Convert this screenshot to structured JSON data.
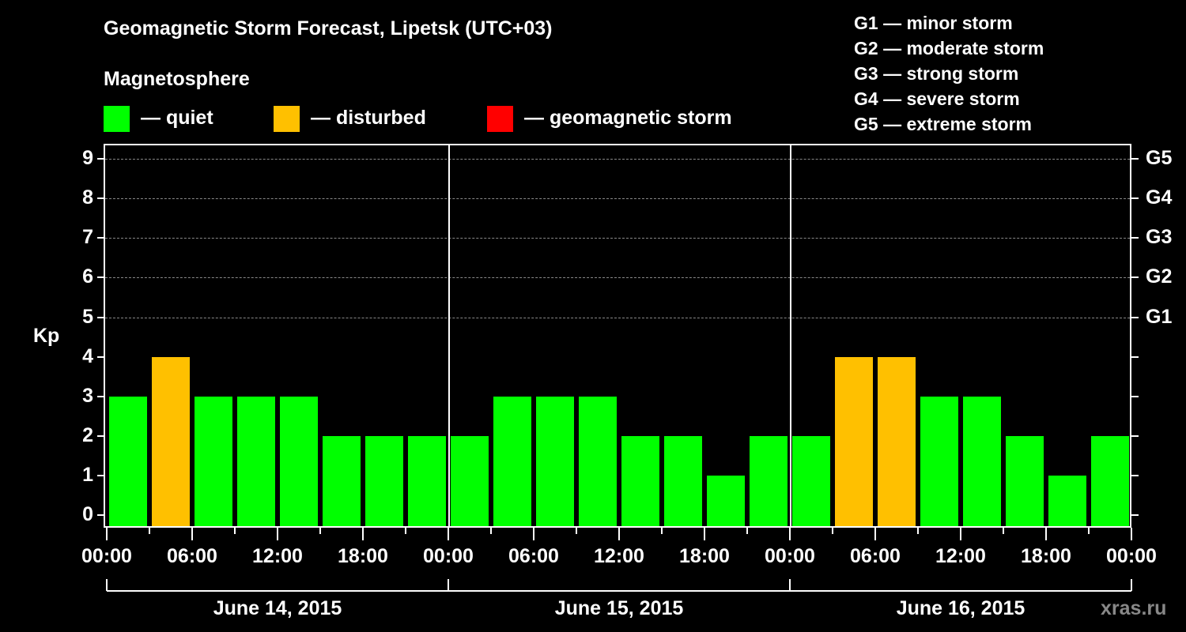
{
  "header": {
    "title": "Geomagnetic Storm Forecast, Lipetsk (UTC+03)",
    "subtitle": "Magnetosphere"
  },
  "legend": {
    "items": [
      {
        "label": "— quiet",
        "color": "#00ff00"
      },
      {
        "label": "— disturbed",
        "color": "#ffc000"
      },
      {
        "label": "— geomagnetic storm",
        "color": "#ff0000"
      }
    ]
  },
  "g_scale_legend": [
    "G1 — minor storm",
    "G2 — moderate storm",
    "G3 — strong storm",
    "G4 — severe storm",
    "G5 — extreme storm"
  ],
  "axes": {
    "y_label": "Kp",
    "y_ticks": [
      "0",
      "1",
      "2",
      "3",
      "4",
      "5",
      "6",
      "7",
      "8",
      "9"
    ],
    "right_ticks": [
      "G1",
      "G2",
      "G3",
      "G4",
      "G5"
    ],
    "x_ticks": [
      "00:00",
      "06:00",
      "12:00",
      "18:00",
      "00:00",
      "06:00",
      "12:00",
      "18:00",
      "00:00",
      "06:00",
      "12:00",
      "18:00",
      "00:00"
    ],
    "days": [
      "June 14, 2015",
      "June 15, 2015",
      "June 16, 2015"
    ]
  },
  "watermark": "xras.ru",
  "chart_data": {
    "type": "bar",
    "title": "Geomagnetic Storm Forecast, Lipetsk (UTC+03)",
    "subtitle": "Magnetosphere",
    "xlabel": "",
    "ylabel": "Kp",
    "ylim": [
      0,
      9
    ],
    "right_axis": {
      "5": "G1",
      "6": "G2",
      "7": "G3",
      "8": "G4",
      "9": "G5"
    },
    "grid": "dashed horizontal lines at Kp 5-9",
    "legend": [
      {
        "label": "quiet",
        "color": "#00ff00"
      },
      {
        "label": "disturbed",
        "color": "#ffc000"
      },
      {
        "label": "geomagnetic storm",
        "color": "#ff0000"
      }
    ],
    "categories": [
      "Jun14 00-03",
      "Jun14 03-06",
      "Jun14 06-09",
      "Jun14 09-12",
      "Jun14 12-15",
      "Jun14 15-18",
      "Jun14 18-21",
      "Jun14 21-24",
      "Jun15 00-03",
      "Jun15 03-06",
      "Jun15 06-09",
      "Jun15 09-12",
      "Jun15 12-15",
      "Jun15 15-18",
      "Jun15 18-21",
      "Jun15 21-24",
      "Jun16 00-03",
      "Jun16 03-06",
      "Jun16 06-09",
      "Jun16 09-12",
      "Jun16 12-15",
      "Jun16 15-18",
      "Jun16 18-21",
      "Jun16 21-24"
    ],
    "values": [
      3,
      4,
      3,
      3,
      3,
      2,
      2,
      2,
      2,
      3,
      3,
      3,
      2,
      2,
      1,
      2,
      2,
      4,
      4,
      3,
      3,
      2,
      1,
      2
    ],
    "status": [
      "quiet",
      "disturbed",
      "quiet",
      "quiet",
      "quiet",
      "quiet",
      "quiet",
      "quiet",
      "quiet",
      "quiet",
      "quiet",
      "quiet",
      "quiet",
      "quiet",
      "quiet",
      "quiet",
      "quiet",
      "disturbed",
      "disturbed",
      "quiet",
      "quiet",
      "quiet",
      "quiet",
      "quiet"
    ]
  }
}
